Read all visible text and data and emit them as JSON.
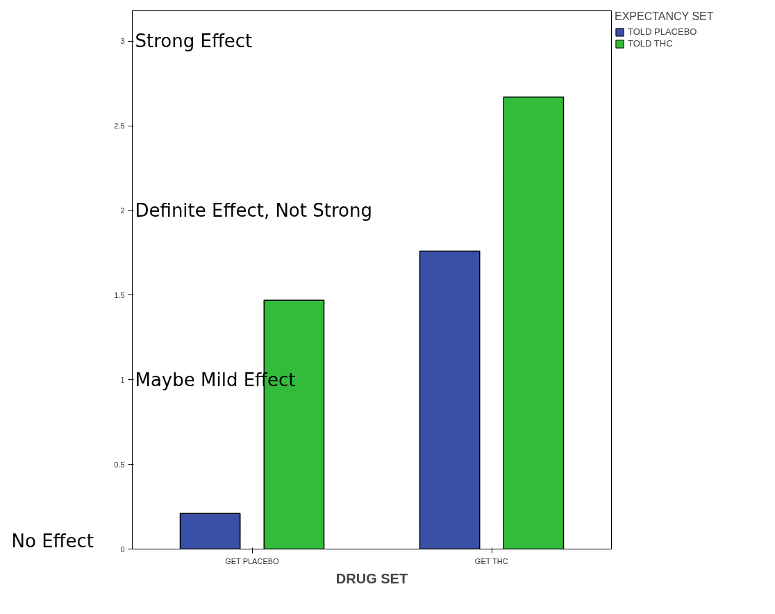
{
  "chart_data": {
    "type": "bar",
    "xlabel": "DRUG SET",
    "legend_title": "EXPECTANCY SET",
    "categories": [
      "GET PLACEBO",
      "GET THC"
    ],
    "series": [
      {
        "name": "TOLD PLACEBO",
        "color": "#3a4fa6",
        "values": [
          0.21,
          1.76
        ]
      },
      {
        "name": "TOLD THC",
        "color": "#33bb3b",
        "values": [
          1.47,
          2.67
        ]
      }
    ],
    "ylim": [
      0,
      3.18
    ],
    "yticks": [
      0,
      0.5,
      1,
      1.5,
      2,
      2.5,
      3
    ],
    "grid": false,
    "legend": "right",
    "annotations": [
      "Strong Effect",
      "Definite Effect, Not Strong",
      "Maybe Mild Effect",
      "No Effect"
    ]
  }
}
